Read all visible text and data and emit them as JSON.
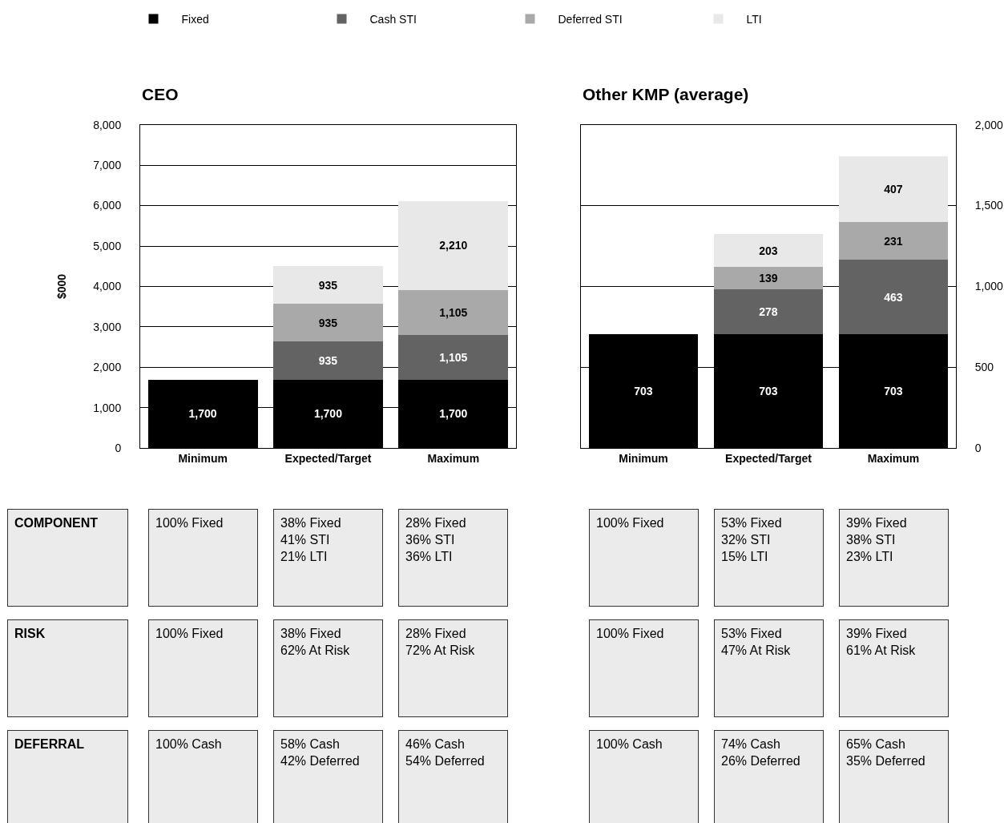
{
  "chart_data": [
    {
      "type": "bar",
      "title": "CEO",
      "ylabel": "$000",
      "categories": [
        "Minimum",
        "Expected/Target",
        "Maximum"
      ],
      "stacked": true,
      "legend": "top",
      "grid": "y",
      "ylim": [
        0,
        8000
      ],
      "yticks": [
        {
          "value": 0,
          "label": "0"
        },
        {
          "value": 1000,
          "label": "1,000"
        },
        {
          "value": 2000,
          "label": "2,000"
        },
        {
          "value": 3000,
          "label": "3,000"
        },
        {
          "value": 4000,
          "label": "4,000"
        },
        {
          "value": 5000,
          "label": "5,000"
        },
        {
          "value": 6000,
          "label": "6,000"
        },
        {
          "value": 7000,
          "label": "7,000"
        },
        {
          "value": 8000,
          "label": "8,000"
        }
      ],
      "series": [
        {
          "name": "Fixed",
          "color": "#000000",
          "values": [
            1700,
            1700,
            1700
          ],
          "value_labels": [
            "1,700",
            "1,700",
            "1,700"
          ]
        },
        {
          "name": "Cash STI",
          "color": "#636363",
          "values": [
            null,
            935,
            1105
          ],
          "value_labels": [
            null,
            "935",
            "1,105"
          ]
        },
        {
          "name": "Deferred STI",
          "color": "#a9a9a9",
          "values": [
            null,
            935,
            1105
          ],
          "value_labels": [
            null,
            "935",
            "1,105"
          ]
        },
        {
          "name": "LTI",
          "color": "#e8e8e8",
          "values": [
            null,
            935,
            2210
          ],
          "value_labels": [
            null,
            "935",
            "2,210"
          ]
        }
      ],
      "annotations": [
        "COMPONENT",
        "100% Fixed",
        "38% Fixed\n41% STI\n21% LTI",
        "28% Fixed\n36% STI\n36% LTI",
        "RISK",
        "100% Fixed",
        "38% Fixed\n62% At Risk",
        "28% Fixed\n72% At Risk",
        "DEFERRAL",
        "100% Cash",
        "58% Cash\n42% Deferred",
        "46% Cash\n54% Deferred"
      ]
    },
    {
      "type": "bar",
      "title": "Other KMP (average)",
      "categories": [
        "Minimum",
        "Expected/Target",
        "Maximum"
      ],
      "stacked": true,
      "data_labels": true,
      "grid": "y",
      "ylim": [
        0,
        2000
      ],
      "yticks": [
        0,
        500,
        {
          "value": 1000,
          "label": "1,000"
        },
        {
          "value": 1500,
          "label": "1,500"
        },
        {
          "value": 2000,
          "label": "2,000"
        }
      ],
      "series": [
        {
          "color": "#000000",
          "values": [
            703,
            703,
            703
          ]
        },
        {
          "color": "#636363",
          "values": [
            null,
            278,
            463
          ]
        },
        {
          "color": "#a9a9a9",
          "values": [
            null,
            139,
            231
          ]
        },
        {
          "color": "#e8e8e8",
          "values": [
            null,
            203,
            407
          ]
        }
      ],
      "annotations": [
        "100% Fixed",
        "53% Fixed\n32% STI\n15% LTI",
        "39% Fixed\n38% STI\n23% LTI",
        "100% Fixed",
        "53% Fixed\n47% At Risk",
        "39% Fixed\n61% At Risk",
        "100% Cash",
        "74% Cash\n26% Deferred",
        "65% Cash\n35% Deferred"
      ]
    }
  ]
}
